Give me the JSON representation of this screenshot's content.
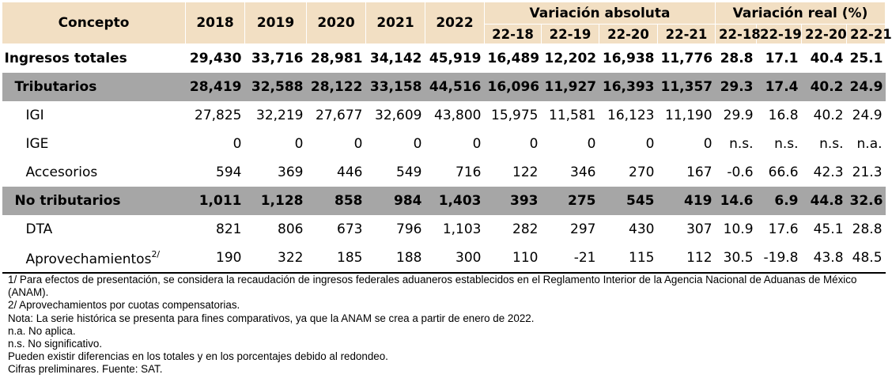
{
  "header": {
    "concept": "Concepto",
    "years": [
      "2018",
      "2019",
      "2020",
      "2021",
      "2022"
    ],
    "group_abs": "Variación absoluta",
    "group_real": "Variación real (%)",
    "abs_cols": [
      "22-18",
      "22-19",
      "22-20",
      "22-21"
    ],
    "real_cols": [
      "22-18",
      "22-19",
      "22-20",
      "22-21"
    ]
  },
  "rows": {
    "total": {
      "label": "Ingresos totales",
      "values": [
        "29,430",
        "33,716",
        "28,981",
        "34,142",
        "45,919",
        "16,489",
        "12,202",
        "16,938",
        "11,776",
        "28.8",
        "17.1",
        "40.4",
        "25.1"
      ]
    },
    "tributarios": {
      "label": "Tributarios",
      "values": [
        "28,419",
        "32,588",
        "28,122",
        "33,158",
        "44,516",
        "16,096",
        "11,927",
        "16,393",
        "11,357",
        "29.3",
        "17.4",
        "40.2",
        "24.9"
      ]
    },
    "igi": {
      "label": "IGI",
      "values": [
        "27,825",
        "32,219",
        "27,677",
        "32,609",
        "43,800",
        "15,975",
        "11,581",
        "16,123",
        "11,190",
        "29.9",
        "16.8",
        "40.2",
        "24.9"
      ]
    },
    "ige": {
      "label": "IGE",
      "values": [
        "0",
        "0",
        "0",
        "0",
        "0",
        "0",
        "0",
        "0",
        "0",
        "n.s.",
        "n.s.",
        "n.s.",
        "n.a."
      ]
    },
    "accesorios": {
      "label": "Accesorios",
      "values": [
        "594",
        "369",
        "446",
        "549",
        "716",
        "122",
        "346",
        "270",
        "167",
        "-0.6",
        "66.6",
        "42.3",
        "21.3"
      ]
    },
    "no_tributarios": {
      "label": "No tributarios",
      "values": [
        "1,011",
        "1,128",
        "858",
        "984",
        "1,403",
        "393",
        "275",
        "545",
        "419",
        "14.6",
        "6.9",
        "44.8",
        "32.6"
      ]
    },
    "dta": {
      "label": "DTA",
      "values": [
        "821",
        "806",
        "673",
        "796",
        "1,103",
        "282",
        "297",
        "430",
        "307",
        "10.9",
        "17.6",
        "45.1",
        "28.8"
      ]
    },
    "aprovechamientos": {
      "label": "Aprovechamientos",
      "sup": "2/",
      "values": [
        "190",
        "322",
        "185",
        "188",
        "300",
        "110",
        "-21",
        "115",
        "112",
        "30.5",
        "-19.8",
        "43.8",
        "48.5"
      ]
    }
  },
  "notes": [
    "1/ Para efectos de presentación, se considera la recaudación de ingresos federales aduaneros establecidos en el Reglamento Interior de la Agencia Nacional de Aduanas de México (ANAM).",
    "2/ Aprovechamientos por cuotas compensatorias.",
    "Nota: La serie histórica se presenta para fines comparativos, ya que la ANAM se crea a partir de enero de 2022.",
    "n.a. No aplica.",
    "n.s. No significativo.",
    "Pueden existir diferencias en los totales y en los porcentajes debido al redondeo.",
    "Cifras preliminares. Fuente: SAT."
  ],
  "colors": {
    "header_bg": "#f2dfc3",
    "band_bg": "#a6a6a6"
  }
}
